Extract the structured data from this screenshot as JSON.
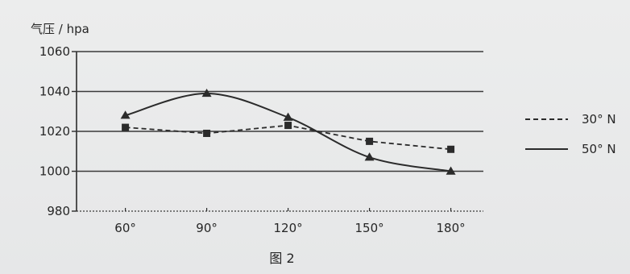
{
  "chart_data": {
    "type": "line",
    "ylabel": "气压 / hpa",
    "caption": "图 2",
    "categories": [
      "60°",
      "90°",
      "120°",
      "150°",
      "180°"
    ],
    "x": [
      60,
      90,
      120,
      150,
      180
    ],
    "xlim": [
      42,
      192
    ],
    "ylim": [
      980,
      1060
    ],
    "yticks": [
      1060,
      1040,
      1020,
      1000,
      980
    ],
    "grid": true,
    "legend_position": "right",
    "series": [
      {
        "name": "30° N",
        "style": "dashed",
        "marker": "square",
        "values": [
          1022,
          1019,
          1023,
          1015,
          1011
        ]
      },
      {
        "name": "50° N",
        "style": "solid",
        "marker": "triangle",
        "values": [
          1028,
          1039,
          1027,
          1007,
          1000
        ]
      }
    ]
  },
  "colors": {
    "ink": "#2b2b2b",
    "grid": "#3a3a3a",
    "background": "#e9eaeb"
  }
}
